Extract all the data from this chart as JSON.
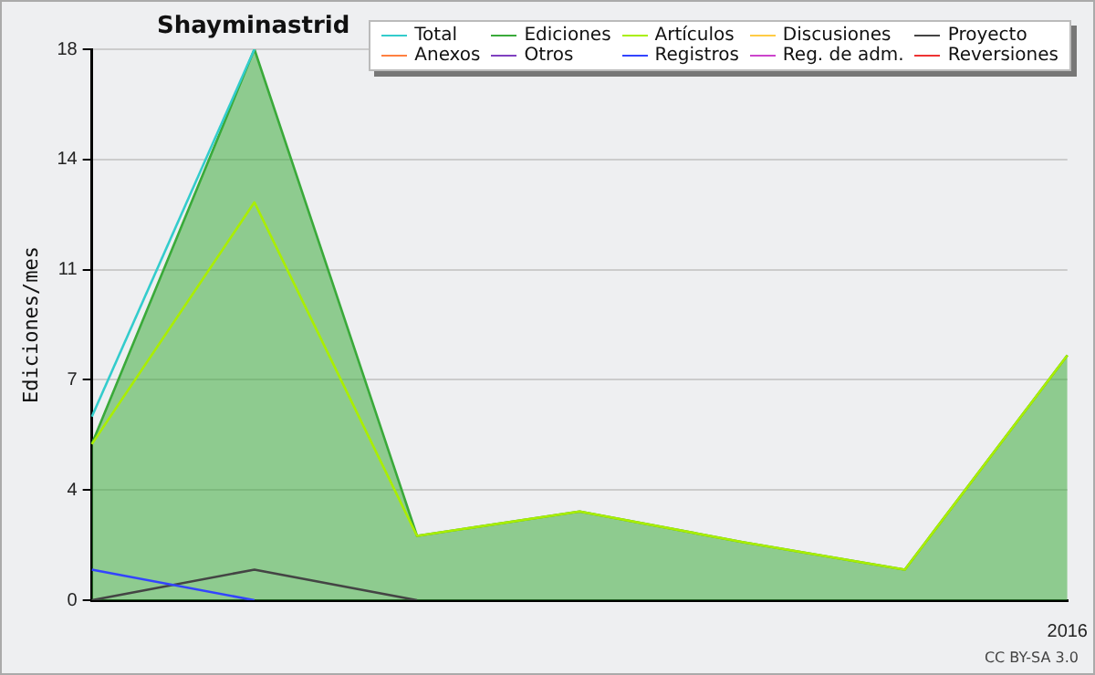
{
  "chart_data": {
    "type": "line",
    "title": "Shayminastrid",
    "ylabel": "Ediciones/mes",
    "categories": [
      null,
      null,
      null,
      null,
      null,
      null,
      "2016"
    ],
    "series": [
      {
        "name": "Total",
        "color": "#33cccc",
        "values": [
          6.0,
          18,
          null,
          null,
          null,
          null,
          null
        ]
      },
      {
        "name": "Ediciones",
        "type": "area",
        "color": "#3aaa3a",
        "values": [
          5.1,
          18,
          2.1,
          2.9,
          1.9,
          1.0,
          8.0
        ]
      },
      {
        "name": "Artículos",
        "color": "#aaee00",
        "values": [
          5.1,
          13.0,
          2.1,
          2.9,
          1.9,
          1.0,
          8.0
        ]
      },
      {
        "name": "Discusiones",
        "color": "#ffcc44",
        "values": [
          null,
          null,
          null,
          null,
          null,
          null,
          null
        ]
      },
      {
        "name": "Proyecto",
        "color": "#444444",
        "values": [
          0,
          1,
          0,
          null,
          null,
          null,
          null
        ]
      },
      {
        "name": "Anexos",
        "color": "#ff8040",
        "values": [
          null,
          null,
          null,
          null,
          null,
          null,
          null
        ]
      },
      {
        "name": "Otros",
        "color": "#8040c0",
        "values": [
          null,
          null,
          null,
          null,
          null,
          null,
          null
        ]
      },
      {
        "name": "Registros",
        "color": "#3344ff",
        "values": [
          1,
          0,
          null,
          null,
          null,
          null,
          null
        ]
      },
      {
        "name": "Reg. de adm.",
        "color": "#cc44cc",
        "values": [
          null,
          null,
          null,
          null,
          null,
          null,
          null
        ]
      },
      {
        "name": "Reversiones",
        "color": "#ee3333",
        "values": [
          null,
          null,
          null,
          null,
          null,
          null,
          null
        ]
      }
    ],
    "ylim": [
      0,
      18
    ],
    "yticks": [
      0,
      {
        "value": 3.6,
        "label": "4"
      },
      {
        "value": 7.2,
        "label": "7"
      },
      {
        "value": 10.8,
        "label": "11"
      },
      {
        "value": 14.4,
        "label": "14"
      },
      18
    ],
    "grid": "y",
    "legend": "top right",
    "marker": "none",
    "annotations": [
      "CC BY-SA 3.0"
    ]
  }
}
